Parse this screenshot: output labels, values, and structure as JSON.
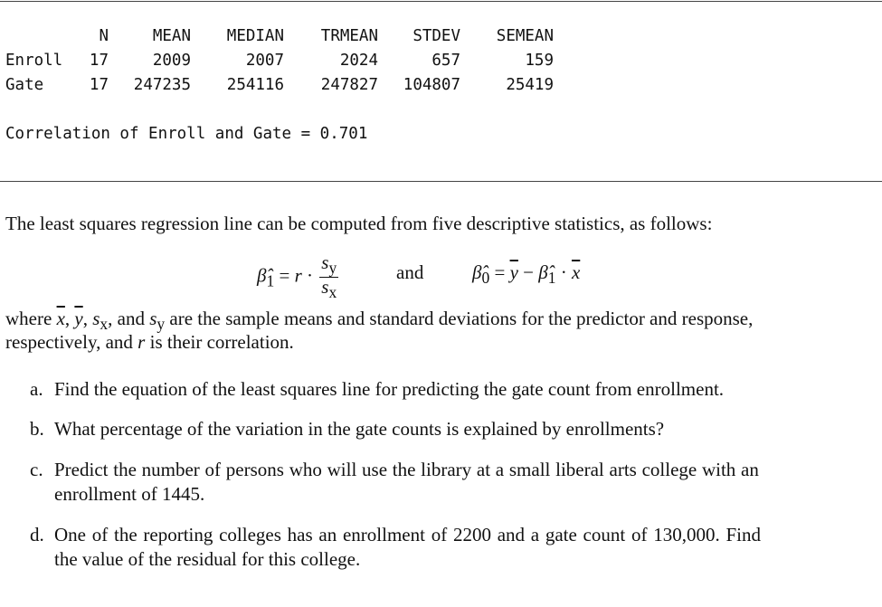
{
  "stats_table": {
    "headers": [
      "N",
      "MEAN",
      "MEDIAN",
      "TRMEAN",
      "STDEV",
      "SEMEAN"
    ],
    "rows": [
      {
        "label": "Enroll",
        "values": [
          "17",
          "2009",
          "2007",
          "2024",
          "657",
          "159"
        ]
      },
      {
        "label": "Gate",
        "values": [
          "17",
          "247235",
          "254116",
          "247827",
          "104807",
          "25419"
        ]
      }
    ]
  },
  "correlation_line": "Correlation of Enroll and Gate = 0.701",
  "intro": "The least squares regression line can be computed from five descriptive statistics, as follows:",
  "formula": {
    "b1_lhs": "β̂",
    "b1_sub": "1",
    "eq": " = ",
    "r": "r",
    "dot": " · ",
    "sy": "s",
    "sy_sub": "y",
    "sx": "s",
    "sx_sub": "x",
    "and": "and",
    "b0_lhs": "β̂",
    "b0_sub": "0",
    "ybar": "y",
    "minus": " − ",
    "xbar": "x"
  },
  "where": {
    "p1": "where ",
    "xbar": "x",
    "c1": ", ",
    "ybar": "y",
    "c2": ", ",
    "sx": "s",
    "sx_sub": "x",
    "c3": ", and ",
    "sy": "s",
    "sy_sub": "y",
    "p2": " are the sample means and standard deviations for the predictor and response,",
    "line2a": "respectively, and ",
    "r": "r",
    "line2b": " is their correlation."
  },
  "questions": [
    {
      "marker": "a.",
      "lines": [
        "Find the equation of the least squares line for predicting the gate count from enrollment."
      ]
    },
    {
      "marker": "b.",
      "lines": [
        "What percentage of the variation in the gate counts is explained by enrollments?"
      ]
    },
    {
      "marker": "c.",
      "lines": [
        "Predict the number of persons who will use the library at a small liberal arts college with an",
        "enrollment of 1445."
      ]
    },
    {
      "marker": "d.",
      "lines": [
        "One of the reporting colleges has an enrollment of 2200 and a gate count of 130,000.  Find",
        "the value of the residual for this college."
      ]
    }
  ]
}
